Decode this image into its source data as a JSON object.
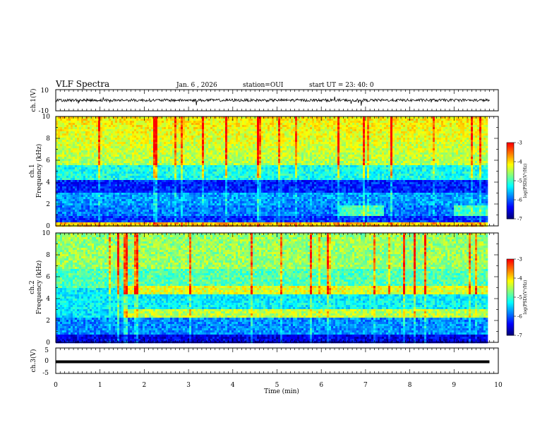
{
  "header": {
    "title": "VLF Spectra",
    "date": "Jan. 6 , 2026",
    "station": "station=OUI",
    "start": "start UT =  23: 40: 0"
  },
  "colors": {
    "spectrogram_colormap": [
      "#00007f",
      "#0000ff",
      "#0080ff",
      "#00ffff",
      "#80ff80",
      "#ffff00",
      "#ff8000",
      "#ff0000",
      "#ffffff"
    ],
    "trace": "#000000"
  },
  "chart_data": [
    {
      "type": "line",
      "panel": "ch1-waveform",
      "ylabel": "ch.1(V)",
      "xlim": [
        0,
        10
      ],
      "ylim": [
        -10,
        10
      ],
      "yticks": [
        "10",
        "-10"
      ],
      "series": [
        {
          "x": [
            0,
            9.8
          ],
          "y": [
            0,
            0
          ]
        }
      ]
    },
    {
      "type": "heatmap",
      "panel": "ch1-spectrogram",
      "ylabel": "ch.1\nFrequency (kHz)",
      "xlim": [
        0,
        10
      ],
      "ylim": [
        0,
        10
      ],
      "yticks": [
        "0",
        "2",
        "4",
        "6",
        "8",
        "10"
      ],
      "colorbar": {
        "label": "log(PSD)(V²/Hz)",
        "range": [
          -7,
          -3
        ],
        "ticks": [
          "-3",
          "-4",
          "-5",
          "-6",
          "-7"
        ]
      }
    },
    {
      "type": "heatmap",
      "panel": "ch2-spectrogram",
      "ylabel": "ch.2\nFrequency (kHz)",
      "xlim": [
        0,
        10
      ],
      "ylim": [
        0,
        10
      ],
      "yticks": [
        "0",
        "2",
        "4",
        "6",
        "8",
        "10"
      ],
      "colorbar": {
        "label": "log(PSD)(V²/Hz)",
        "range": [
          -7,
          -3
        ],
        "ticks": [
          "-3",
          "-4",
          "-5",
          "-6",
          "-7"
        ]
      }
    },
    {
      "type": "line",
      "panel": "ch3-waveform",
      "ylabel": "ch.3(V)",
      "xlabel": "Time (min)",
      "xlim": [
        0,
        10
      ],
      "ylim": [
        -5,
        5
      ],
      "yticks": [
        "5",
        "0",
        "-5"
      ],
      "xticks": [
        "0",
        "1",
        "2",
        "3",
        "4",
        "5",
        "6",
        "7",
        "8",
        "9",
        "10"
      ],
      "series": [
        {
          "x": [
            0,
            9.8
          ],
          "y": [
            -0.4,
            -0.4
          ]
        }
      ]
    }
  ]
}
